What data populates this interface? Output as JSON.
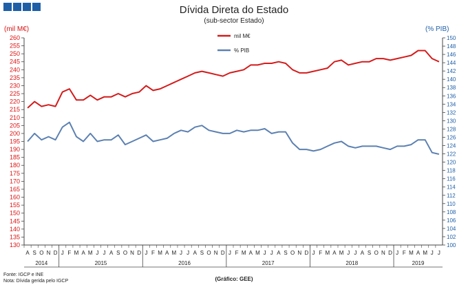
{
  "colors": {
    "debt": "#d41a1a",
    "pib": "#5b80b1",
    "logo": "#1f5fa8"
  },
  "logo": {
    "name": "gee-logo-blocks"
  },
  "chart_data": {
    "type": "line",
    "title": "Dívida Direta do Estado",
    "subtitle": "(sub-sector Estado)",
    "ylabel": "(mil M€)",
    "y2label": "(% PIB)",
    "ylim": [
      130,
      260
    ],
    "y2lim": [
      100,
      150
    ],
    "y_ticks": [
      130,
      135,
      140,
      145,
      150,
      155,
      160,
      165,
      170,
      175,
      180,
      185,
      190,
      195,
      200,
      205,
      210,
      215,
      220,
      225,
      230,
      235,
      240,
      245,
      250,
      255,
      260
    ],
    "y2_ticks": [
      100,
      102,
      104,
      106,
      108,
      110,
      112,
      114,
      116,
      118,
      120,
      122,
      124,
      126,
      128,
      130,
      132,
      134,
      136,
      138,
      140,
      142,
      144,
      146,
      148,
      150
    ],
    "grid": false,
    "legend_position": "top-center",
    "categories": [
      "A",
      "S",
      "O",
      "N",
      "D",
      "J",
      "F",
      "M",
      "A",
      "M",
      "J",
      "J",
      "A",
      "S",
      "O",
      "N",
      "D",
      "J",
      "F",
      "M",
      "A",
      "M",
      "J",
      "J",
      "A",
      "S",
      "O",
      "N",
      "D",
      "J",
      "F",
      "M",
      "A",
      "M",
      "J",
      "J",
      "A",
      "S",
      "O",
      "N",
      "D",
      "J",
      "F",
      "M",
      "A",
      "M",
      "J",
      "J",
      "A",
      "S",
      "O",
      "N",
      "D",
      "J",
      "F",
      "M",
      "A",
      "M",
      "J",
      "J"
    ],
    "years": [
      {
        "label": "2014",
        "start": 0,
        "end": 4
      },
      {
        "label": "2015",
        "start": 5,
        "end": 16
      },
      {
        "label": "2016",
        "start": 17,
        "end": 28
      },
      {
        "label": "2017",
        "start": 29,
        "end": 40
      },
      {
        "label": "2018",
        "start": 41,
        "end": 52
      },
      {
        "label": "2019",
        "start": 53,
        "end": 59
      }
    ],
    "series": [
      {
        "name": "mil M€",
        "axis": "left",
        "values": [
          216,
          220,
          217,
          218,
          217,
          226,
          228,
          221,
          221,
          224,
          221,
          223,
          223,
          225,
          223,
          225,
          226,
          230,
          227,
          228,
          230,
          232,
          234,
          236,
          238,
          239,
          238,
          237,
          236,
          238,
          239,
          240,
          243,
          243,
          244,
          244,
          245,
          244,
          240,
          238,
          238,
          239,
          240,
          241,
          245,
          246,
          243,
          244,
          245,
          245,
          247,
          247,
          246,
          247,
          248,
          249,
          252,
          252,
          247,
          245
        ]
      },
      {
        "name": "% PIB",
        "axis": "left",
        "values": [
          195,
          200,
          196,
          198,
          196,
          204,
          207,
          198,
          195,
          200,
          195,
          196,
          196,
          199,
          193,
          195,
          197,
          199,
          195,
          196,
          197,
          200,
          202,
          201,
          204,
          205,
          202,
          201,
          200,
          200,
          202,
          201,
          202,
          202,
          203,
          200,
          201,
          201,
          194,
          190,
          190,
          189,
          190,
          192,
          194,
          195,
          192,
          191,
          192,
          192,
          192,
          191,
          190,
          192,
          192,
          193,
          196,
          196,
          188,
          187
        ]
      }
    ],
    "footnotes": [
      "Fonte: IGCP e INE",
      "Nota: Dívida gerida pelo IGCP"
    ],
    "credit": "(Gráfico: GEE)"
  }
}
